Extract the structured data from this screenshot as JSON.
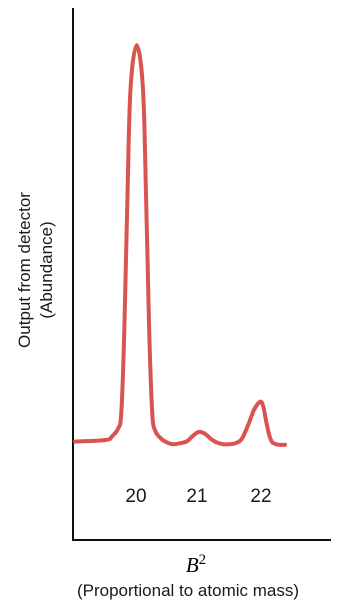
{
  "chart_data": {
    "type": "line",
    "y_label_line1": "Output from detector",
    "y_label_line2": "(Abundance)",
    "x_label_symbol": "B",
    "x_label_superscript": "2",
    "x_label_caption": "(Proportional to atomic mass)",
    "tick_labels": [
      "20",
      "21",
      "22"
    ],
    "xlim": [
      19.0,
      22.4
    ],
    "ylim": [
      0,
      100
    ],
    "series": [
      {
        "color": "#d9534f",
        "x": [
          19.0,
          19.5,
          19.6,
          19.7,
          19.75,
          19.8,
          19.85,
          19.9,
          20.0,
          20.1,
          20.15,
          20.2,
          20.25,
          20.3,
          20.4,
          20.5,
          20.6,
          20.8,
          20.9,
          21.0,
          21.1,
          21.2,
          21.3,
          21.4,
          21.5,
          21.6,
          21.7,
          21.8,
          21.9,
          22.0,
          22.05,
          22.1,
          22.15,
          22.2,
          22.3,
          22.4
        ],
        "values": [
          18.5,
          18.8,
          19.5,
          21.0,
          24.0,
          40.0,
          65.0,
          85.0,
          93.0,
          85.0,
          65.0,
          40.0,
          24.0,
          20.5,
          19.0,
          18.3,
          18.0,
          18.5,
          19.5,
          20.3,
          20.0,
          19.0,
          18.3,
          18.0,
          18.0,
          18.2,
          19.0,
          21.5,
          24.5,
          26.0,
          25.0,
          22.0,
          19.5,
          18.3,
          17.9,
          17.9
        ]
      }
    ]
  }
}
